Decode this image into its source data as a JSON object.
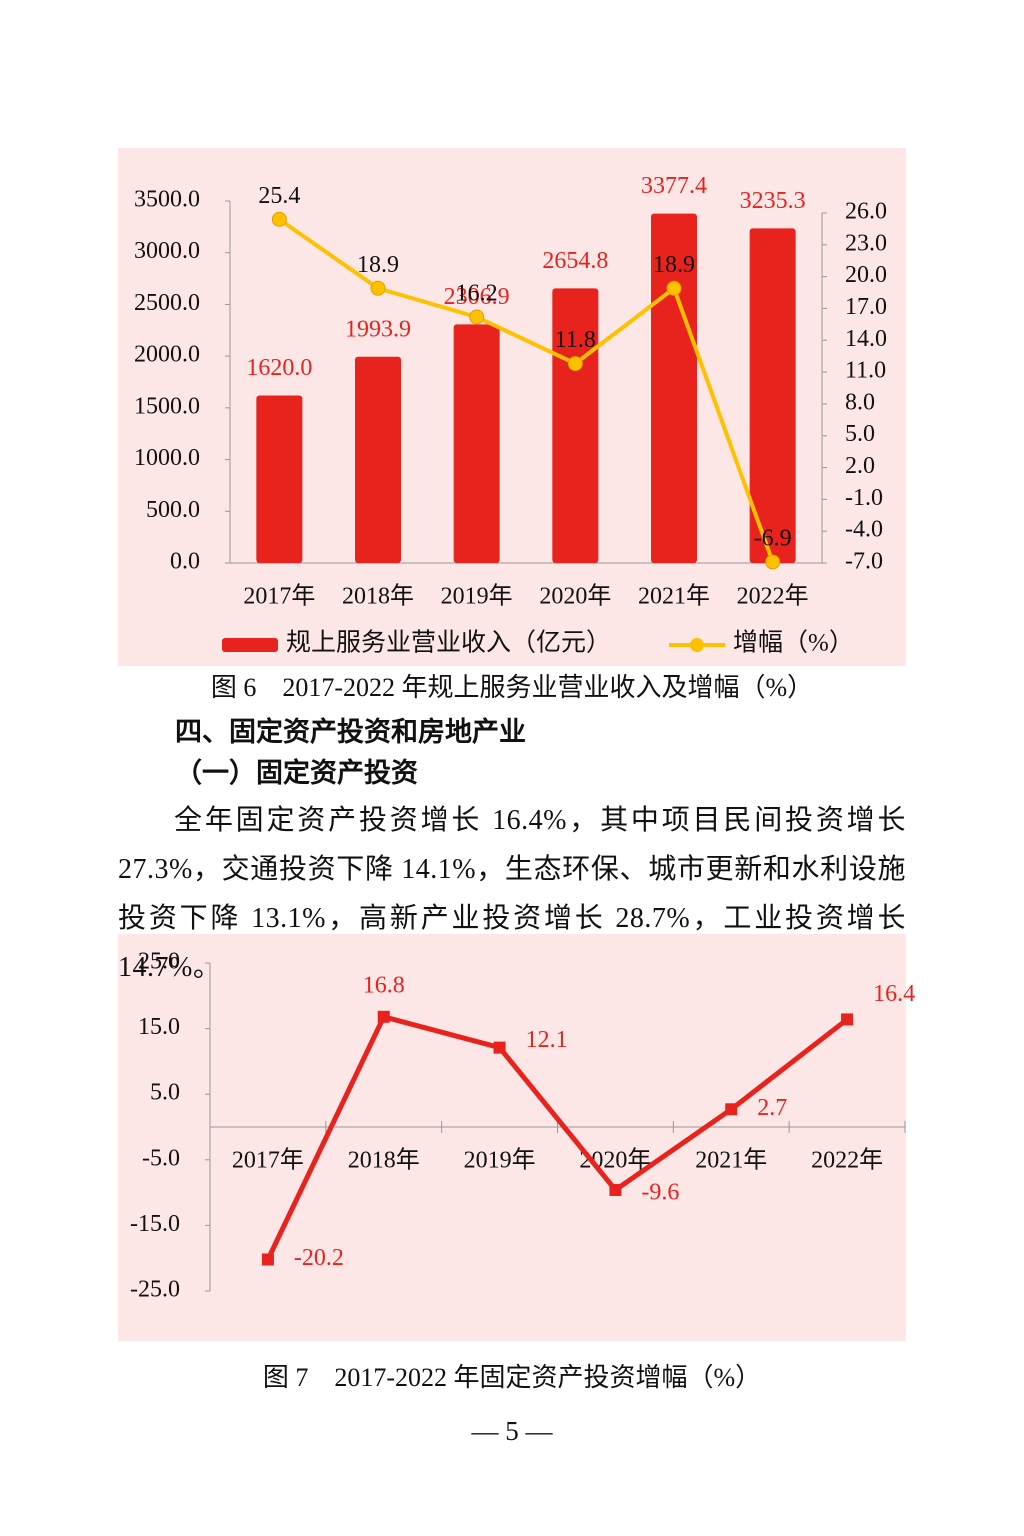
{
  "chart_data": [
    {
      "type": "combo",
      "title": "图 6　2017-2022 年规上服务业营业收入及增幅（%）",
      "categories": [
        "2017年",
        "2018年",
        "2019年",
        "2020年",
        "2021年",
        "2022年"
      ],
      "series": [
        {
          "name": "规上服务业营业收入（亿元）",
          "type": "bar",
          "color": "#e8231e",
          "values": [
            1620.0,
            1993.9,
            2306.9,
            2654.8,
            3377.4,
            3235.3
          ],
          "value_labels": [
            "1620.0",
            "1993.9",
            "2306.9",
            "2654.8",
            "3377.4",
            "3235.3"
          ]
        },
        {
          "name": "增幅（%）",
          "type": "line",
          "axis": "y2",
          "color": "#ffc000",
          "values": [
            25.4,
            18.9,
            16.2,
            11.8,
            18.9,
            -6.9
          ]
        }
      ],
      "ylim": [
        0,
        3500
      ],
      "yticks": [
        {
          "value": 0,
          "label": "0.0"
        },
        {
          "value": 500,
          "label": "500.0"
        },
        {
          "value": 1000,
          "label": "1000.0"
        },
        {
          "value": 1500,
          "label": "1500.0"
        },
        {
          "value": 2000,
          "label": "2000.0"
        },
        {
          "value": 2500,
          "label": "2500.0"
        },
        {
          "value": 3000,
          "label": "3000.0"
        },
        {
          "value": 3500,
          "label": "3500.0"
        }
      ],
      "y2lim": [
        -7,
        26
      ],
      "y2ticks": [
        {
          "value": -7,
          "label": "-7.0"
        },
        {
          "value": -4,
          "label": "-4.0"
        },
        {
          "value": -1,
          "label": "-1.0"
        },
        {
          "value": 2,
          "label": "2.0"
        },
        {
          "value": 5,
          "label": "5.0"
        },
        {
          "value": 8,
          "label": "8.0"
        },
        {
          "value": 11,
          "label": "11.0"
        },
        {
          "value": 14,
          "label": "14.0"
        },
        {
          "value": 17,
          "label": "17.0"
        },
        {
          "value": 20,
          "label": "20.0"
        },
        {
          "value": 23,
          "label": "23.0"
        },
        {
          "value": 26,
          "label": "26.0"
        }
      ],
      "legend": "bottom"
    },
    {
      "type": "line",
      "title": "图 7　2017-2022 年固定资产投资增幅（%）",
      "categories": [
        "2017年",
        "2018年",
        "2019年",
        "2020年",
        "2021年",
        "2022年"
      ],
      "values": [
        -20.2,
        16.8,
        12.1,
        -9.6,
        2.7,
        16.4
      ],
      "color": "#e8231e",
      "ylim": [
        -25,
        25
      ],
      "yticks": [
        {
          "value": -25,
          "label": "-25.0"
        },
        {
          "value": -15,
          "label": "-15.0"
        },
        {
          "value": -5,
          "label": "-5.0"
        },
        {
          "value": 5,
          "label": "5.0"
        },
        {
          "value": 15,
          "label": "15.0"
        },
        {
          "value": 25,
          "label": "25.0"
        }
      ]
    }
  ],
  "document": {
    "heading": "四、固定资产投资和房地产业",
    "subheading": "（一）固定资产投资",
    "paragraph": "全年固定资产投资增长 16.4%，其中项目民间投资增长 27.3%，交通投资下降 14.1%，生态环保、城市更新和水利设施投资下降 13.1%，高新产业投资增长 28.7%，工业投资增长 14.7%。",
    "page_number": "— 5 —"
  }
}
